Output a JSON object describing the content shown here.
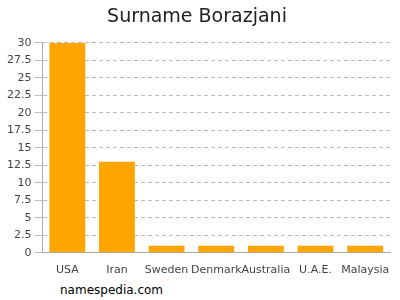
{
  "chart_data": {
    "type": "bar",
    "title": "Surname Borazjani",
    "categories": [
      "USA",
      "Iran",
      "Sweden",
      "Denmark",
      "Australia",
      "U.A.E.",
      "Malaysia"
    ],
    "values": [
      30,
      13,
      1,
      1,
      1,
      1,
      1
    ],
    "color": "#ffa500",
    "ylim": [
      0,
      30
    ],
    "yticks": [
      0,
      2.5,
      5,
      7.5,
      10,
      12.5,
      15,
      17.5,
      20,
      22.5,
      25,
      27.5,
      30
    ],
    "grid": true,
    "annotation": "namespedia.com"
  }
}
